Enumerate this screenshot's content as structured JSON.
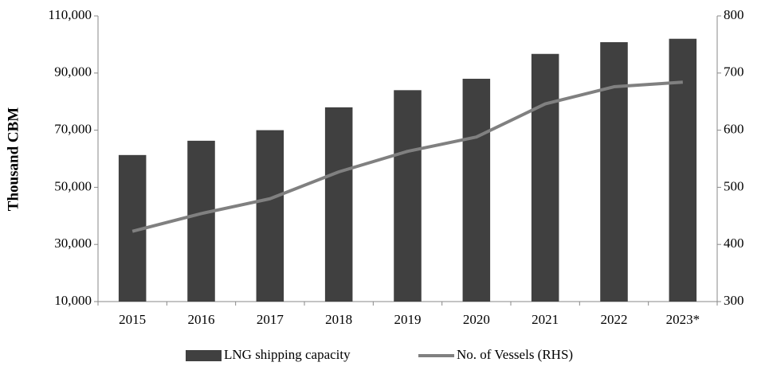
{
  "chart_data": {
    "type": "bar",
    "categories": [
      "2015",
      "2016",
      "2017",
      "2018",
      "2019",
      "2020",
      "2021",
      "2022",
      "2023*"
    ],
    "series": [
      {
        "name": "LNG shipping capacity",
        "type": "bar",
        "color": "#404040",
        "values": [
          61300,
          66300,
          70000,
          78000,
          84000,
          88000,
          96700,
          100800,
          102000
        ]
      },
      {
        "name": "No. of Vessels (RHS)",
        "type": "line",
        "axis": "y2",
        "color": "#808080",
        "values": [
          423,
          454,
          480,
          527,
          563,
          588,
          646,
          676,
          684
        ]
      }
    ],
    "ylabel": "Thousand CBM",
    "ylim": [
      10000,
      110000
    ],
    "yticks": [
      {
        "value": 10000,
        "label": "10,000"
      },
      {
        "value": 30000,
        "label": "30,000"
      },
      {
        "value": 50000,
        "label": "50,000"
      },
      {
        "value": 70000,
        "label": "70,000"
      },
      {
        "value": 90000,
        "label": "90,000"
      },
      {
        "value": 110000,
        "label": "110,000"
      }
    ],
    "y2lim": [
      300,
      800
    ],
    "y2ticks": [
      300,
      400,
      500,
      600,
      700,
      800
    ],
    "grid": false,
    "legend": "bottom"
  }
}
